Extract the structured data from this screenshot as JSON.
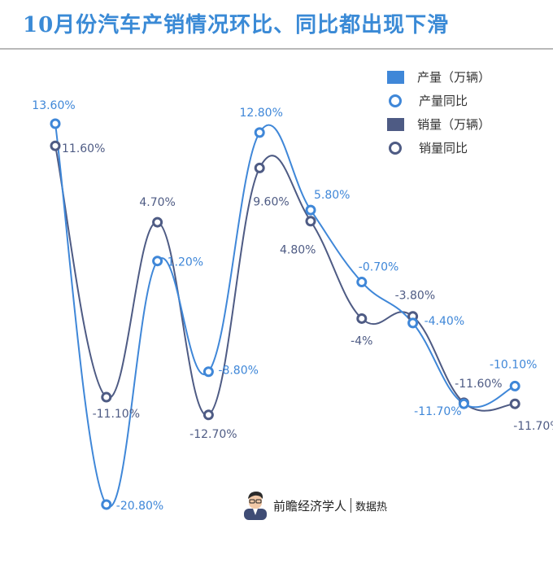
{
  "title": "10月份汽车产销情况环比、同比都出现下滑",
  "legend": [
    {
      "label": "产量（万辆）",
      "kind": "bar",
      "color": "#3f87d8"
    },
    {
      "label": "产量同比",
      "kind": "line",
      "color": "#3f87d8"
    },
    {
      "label": "销量（万辆）",
      "kind": "bar",
      "color": "#4e5b84"
    },
    {
      "label": "销量同比",
      "kind": "line",
      "color": "#4e5b84"
    }
  ],
  "footer": {
    "brand": "前瞻经济学人",
    "sub": "数据热"
  },
  "colors": {
    "production": "#3f87d8",
    "sales": "#4e5b84",
    "title": "#3a8ad6"
  },
  "chart_data": {
    "type": "line",
    "title": "10月份汽车产销情况环比、同比都出现下滑",
    "x": [
      1,
      2,
      3,
      4,
      5,
      6,
      7,
      8,
      9,
      10
    ],
    "ylim": [
      -22,
      16
    ],
    "grid": false,
    "legend_position": "top-right",
    "series": [
      {
        "name": "产量同比",
        "color": "#3f87d8",
        "values": [
          13.6,
          -20.8,
          1.2,
          -8.8,
          12.8,
          5.8,
          -0.7,
          -4.4,
          -11.7,
          -10.1
        ],
        "labels": [
          "13.60%",
          "-20.80%",
          "1.20%",
          "-8.80%",
          "12.80%",
          "5.80%",
          "-0.70%",
          "-4.40%",
          "-11.70%",
          "-10.10%"
        ]
      },
      {
        "name": "销量同比",
        "color": "#4e5b84",
        "values": [
          11.6,
          -11.1,
          4.7,
          -12.7,
          9.6,
          4.8,
          -4,
          -3.8,
          -11.6,
          -11.7
        ],
        "labels": [
          "11.60%",
          "-11.10%",
          "4.70%",
          "-12.70%",
          "9.60%",
          "4.80%",
          "-4%",
          "-3.80%",
          "-11.60%",
          "-11.70%"
        ]
      }
    ]
  }
}
